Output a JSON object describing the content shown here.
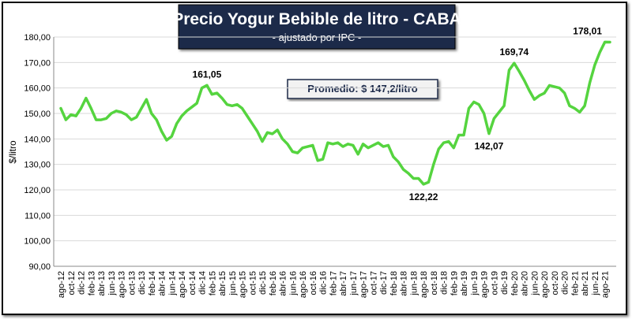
{
  "chart_data": {
    "type": "line",
    "title": "Precio Yogur Bebible de litro - CABA",
    "subtitle": "- ajustado por IPC -",
    "y_label": "$/litro",
    "annotation": "Promedio: $ 147,2/litro",
    "color": "#55d43f",
    "grid": true,
    "ylim": [
      90,
      180
    ],
    "yticks": [
      {
        "value": 90,
        "label": "90,00"
      },
      {
        "value": 100,
        "label": "100,00"
      },
      {
        "value": 110,
        "label": "110,00"
      },
      {
        "value": 120,
        "label": "120,00"
      },
      {
        "value": 130,
        "label": "130,00"
      },
      {
        "value": 140,
        "label": "140,00"
      },
      {
        "value": 150,
        "label": "150,00"
      },
      {
        "value": 160,
        "label": "160,00"
      },
      {
        "value": 170,
        "label": "170,00"
      },
      {
        "value": 180,
        "label": "180,00"
      }
    ],
    "categories": [
      "ago-12",
      null,
      "oct-12",
      null,
      "dic-12",
      null,
      "feb-13",
      null,
      "abr-13",
      null,
      "jun-13",
      null,
      "ago-13",
      null,
      "oct-13",
      null,
      "dic-13",
      null,
      "feb-14",
      null,
      "abr-14",
      null,
      "jun-14",
      null,
      "ago-14",
      null,
      "oct-14",
      null,
      "dic-14",
      null,
      "feb-15",
      null,
      "abr-15",
      null,
      "jun-15",
      null,
      "ago-15",
      null,
      "oct-15",
      null,
      "dic-15",
      null,
      "feb-16",
      null,
      "abr-16",
      null,
      "jun-16",
      null,
      "ago-16",
      null,
      "oct-16",
      null,
      "dic-16",
      null,
      "feb-17",
      null,
      "abr-17",
      null,
      "jun-17",
      null,
      "ago-17",
      null,
      "oct-17",
      null,
      "dic-17",
      null,
      "feb-18",
      null,
      "abr-18",
      null,
      "jun-18",
      null,
      "ago-18",
      null,
      "oct-18",
      null,
      "dic-18",
      null,
      "feb-19",
      null,
      "abr-19",
      null,
      "jun-19",
      null,
      "ago-19",
      null,
      "oct-19",
      null,
      "dic-19",
      null,
      "feb-20",
      null,
      "abr-20",
      null,
      "jun-20",
      null,
      "ago-20",
      null,
      "oct-20",
      null,
      "dic-20",
      null,
      "feb-21",
      null,
      "abr-21",
      null,
      "jun-21",
      null,
      "ago-21",
      null
    ],
    "values": [
      152,
      147.5,
      149.5,
      149,
      152,
      156,
      152,
      147.5,
      147.5,
      148,
      150,
      151,
      150.5,
      149.5,
      147.5,
      148.5,
      152,
      155.5,
      150,
      147.5,
      143,
      139.5,
      141,
      146,
      149,
      151,
      152.5,
      154,
      160,
      161.05,
      157.5,
      158,
      156,
      153.5,
      153,
      153.5,
      152,
      149,
      146,
      143,
      139,
      142.5,
      142,
      143.5,
      140,
      138,
      135,
      134.5,
      136.5,
      137,
      137.5,
      131.5,
      132,
      138.5,
      138,
      138.5,
      137,
      138,
      137.5,
      134,
      138,
      136.5,
      137.5,
      138.5,
      137,
      137.5,
      133,
      131,
      128,
      126.5,
      124.5,
      124.5,
      122.22,
      123,
      130,
      136,
      138.5,
      139,
      136.5,
      141.5,
      141.5,
      152,
      154.5,
      153.5,
      150,
      142.07,
      148,
      150.5,
      153,
      167,
      169.74,
      166.5,
      163,
      159,
      155.5,
      157,
      158,
      161,
      160.5,
      160,
      158,
      153,
      152,
      150.5,
      153,
      162,
      169,
      174,
      178.01,
      178
    ],
    "value_labels": [
      null,
      null,
      null,
      null,
      null,
      null,
      null,
      null,
      null,
      null,
      null,
      null,
      null,
      null,
      null,
      null,
      null,
      null,
      null,
      null,
      null,
      null,
      null,
      null,
      null,
      null,
      null,
      null,
      null,
      "161,05",
      null,
      null,
      null,
      null,
      null,
      null,
      null,
      null,
      null,
      null,
      null,
      null,
      null,
      null,
      null,
      null,
      null,
      null,
      null,
      null,
      null,
      null,
      null,
      null,
      null,
      null,
      null,
      null,
      null,
      null,
      null,
      null,
      null,
      null,
      null,
      null,
      null,
      null,
      null,
      null,
      null,
      null,
      "122,22",
      null,
      null,
      null,
      null,
      null,
      null,
      null,
      null,
      null,
      null,
      null,
      null,
      "142,07",
      null,
      null,
      null,
      null,
      "169,74",
      null,
      null,
      null,
      null,
      null,
      null,
      null,
      null,
      null,
      null,
      null,
      null,
      null,
      null,
      null,
      null,
      null,
      "178,01",
      null
    ]
  }
}
